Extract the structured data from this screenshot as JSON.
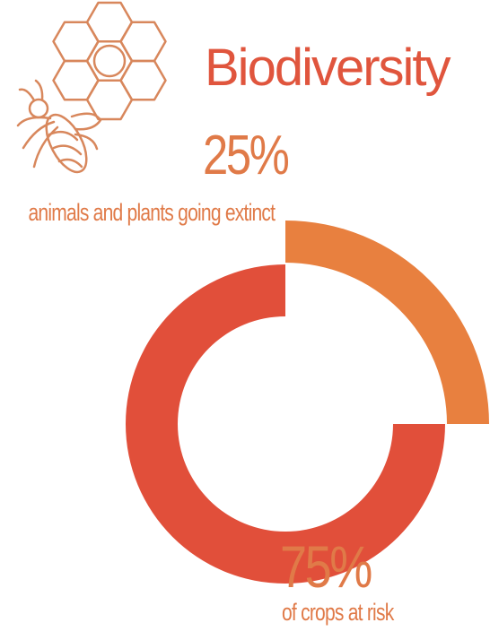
{
  "title": "Biodiversity",
  "colors": {
    "title": "#e0553d",
    "inner_ring": "#e14f3a",
    "outer_ring": "#e8803f",
    "percent_text": "#e07a48",
    "label_text": "#e07a48",
    "icon_stroke": "#d8875c"
  },
  "icons": [
    "honeycomb-flower-icon",
    "bee-icon"
  ],
  "chart_data": {
    "type": "donut",
    "title": "Biodiversity",
    "series": [
      {
        "value": 25,
        "value_label": "25%",
        "label": "animals and plants going extinct",
        "ring": "outer",
        "color": "#e8803f"
      },
      {
        "value": 75,
        "value_label": "75%",
        "label": "of crops at risk",
        "ring": "inner",
        "color": "#e14f3a"
      }
    ]
  }
}
